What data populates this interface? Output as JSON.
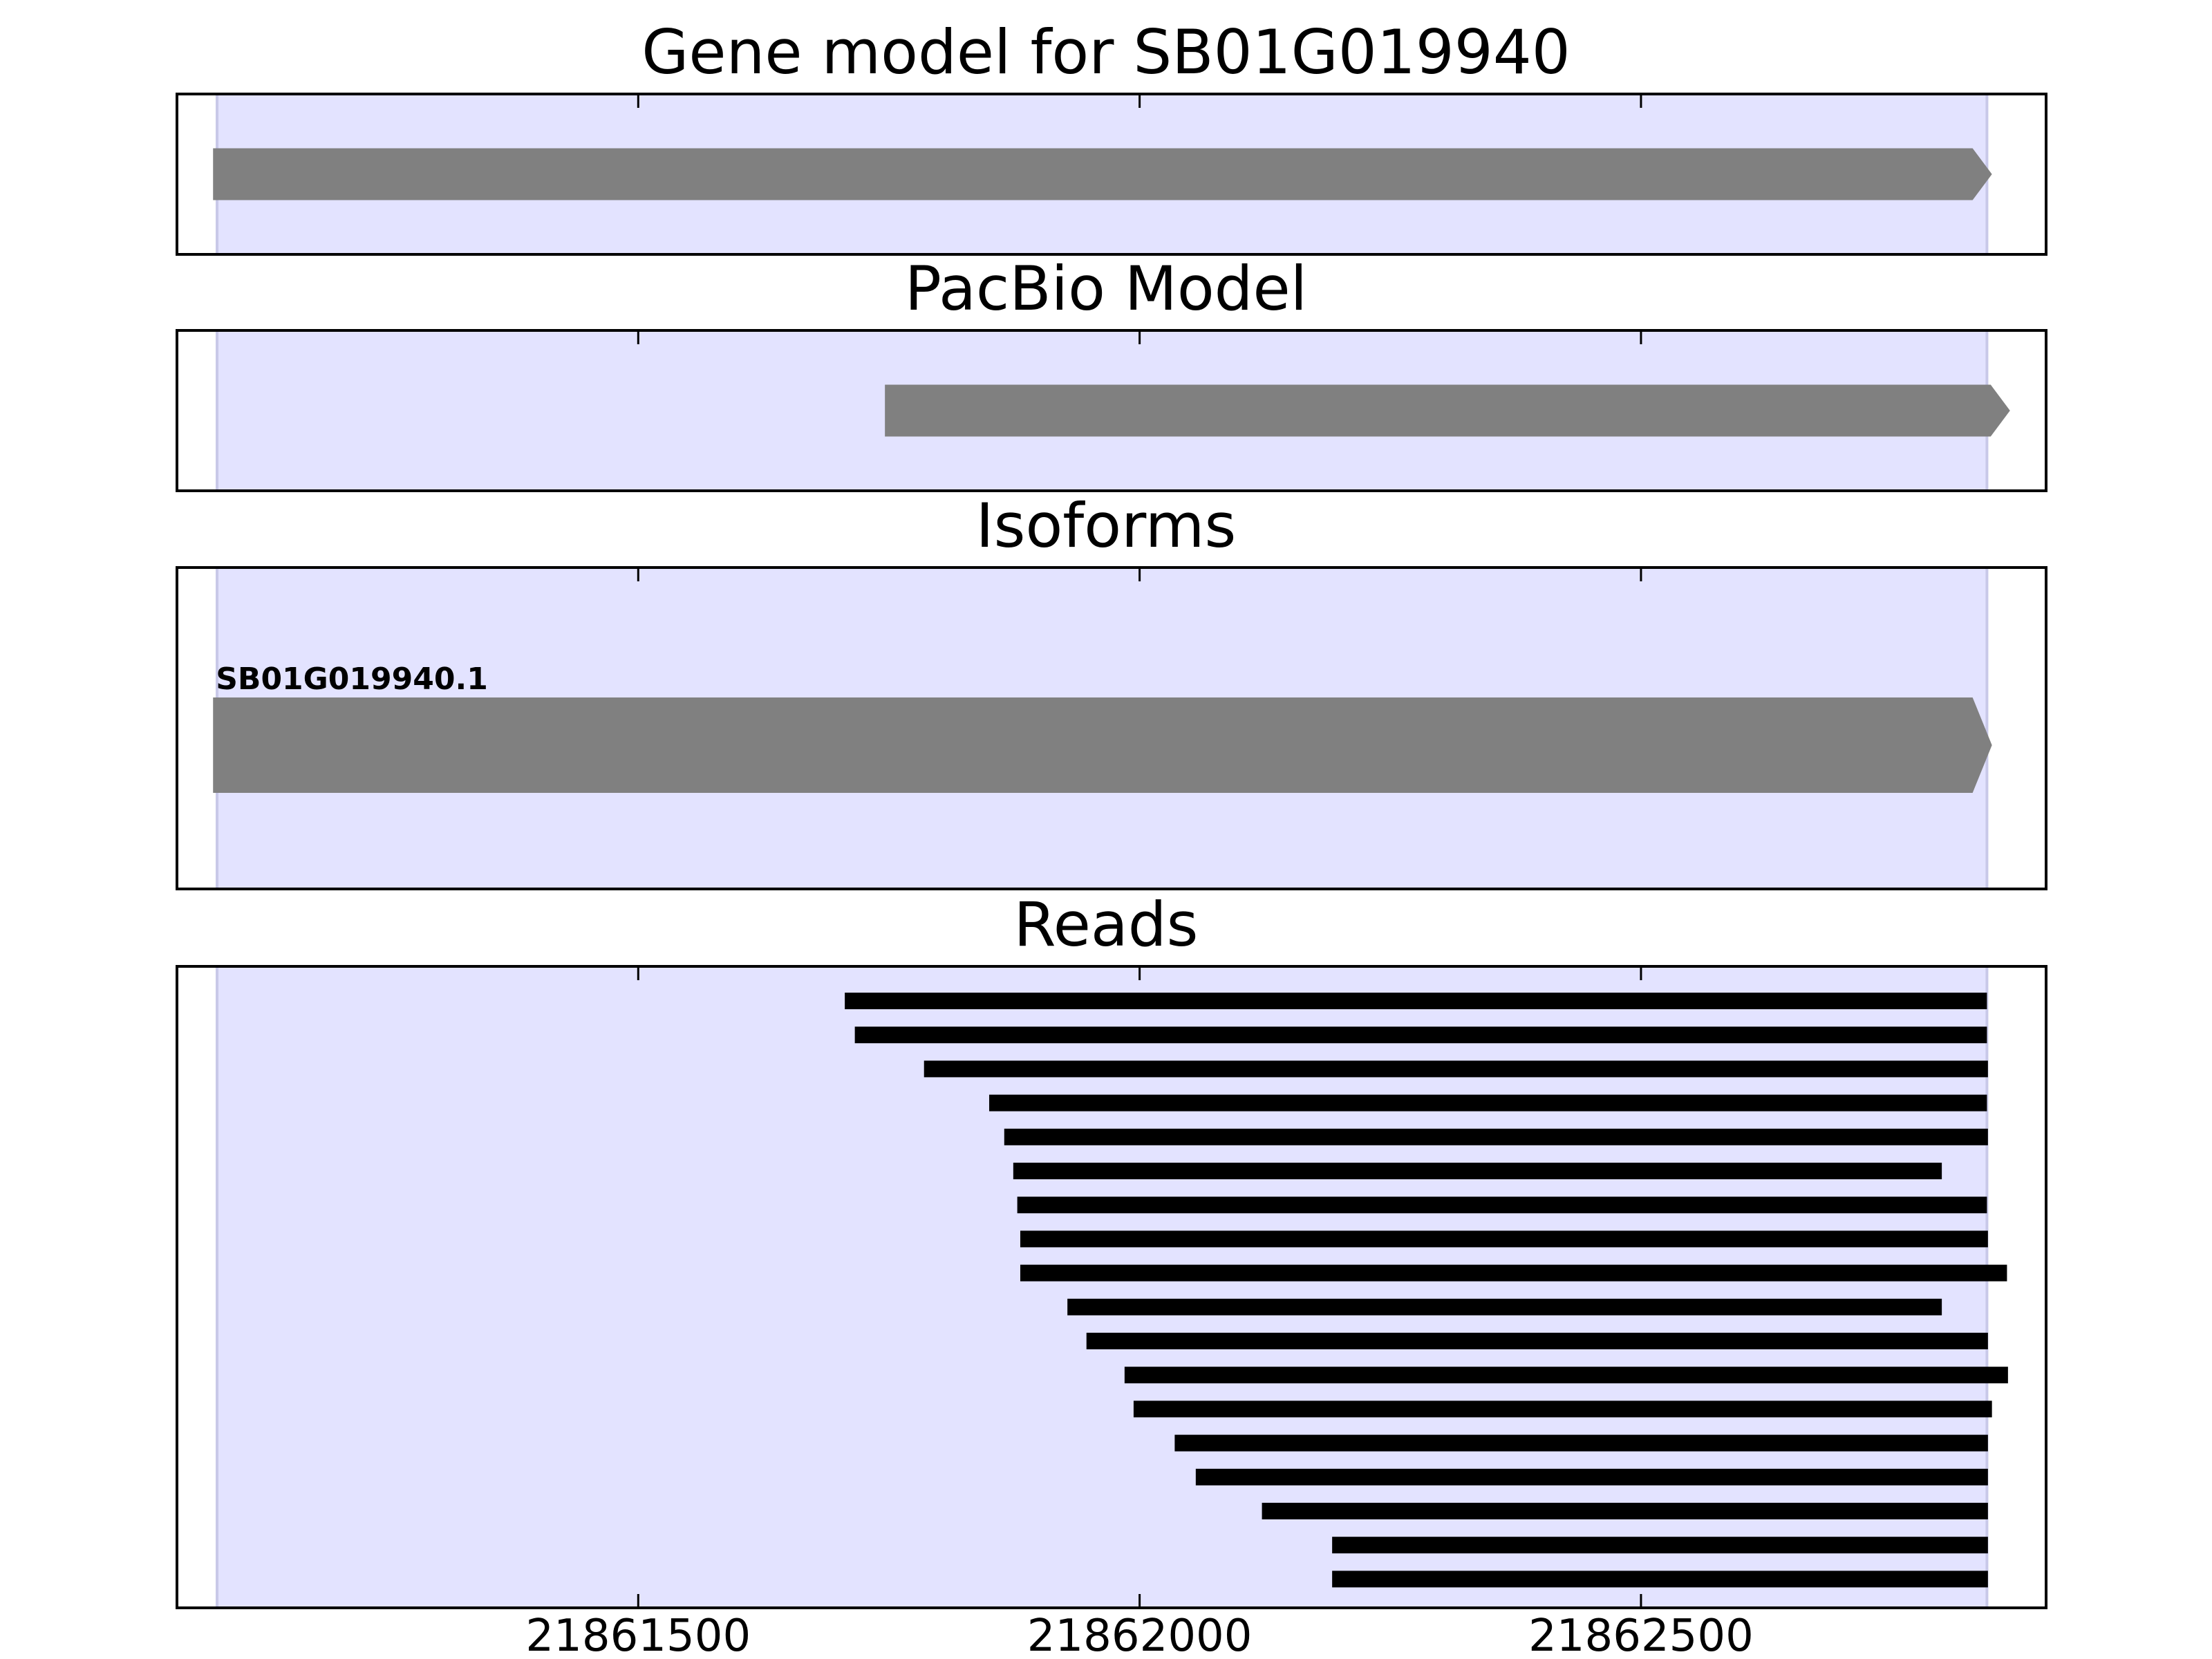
{
  "chart_data": {
    "type": "gene-track",
    "x_axis": {
      "ticks": [
        21861500,
        21862000,
        21862500
      ],
      "tick_labels": [
        "21861500",
        "21862000",
        "21862500"
      ],
      "xlim": [
        21861040,
        21862904
      ]
    },
    "gene_region": {
      "start": 21861080,
      "end": 21862845
    },
    "colors": {
      "gene_region": "#e3e3ff",
      "feature": "#808080",
      "read": "#000000",
      "frame": "#000000"
    },
    "panels": [
      {
        "title": "Gene model for SB01G019940",
        "features": [
          {
            "start": 21861076,
            "end": 21862850,
            "strand": "+"
          }
        ]
      },
      {
        "title": "PacBio Model",
        "features": [
          {
            "start": 21861746,
            "end": 21862868,
            "strand": "+"
          }
        ]
      },
      {
        "title": "Isoforms",
        "features": [
          {
            "name": "SB01G019940.1",
            "start": 21861076,
            "end": 21862850,
            "strand": "+"
          }
        ]
      },
      {
        "title": "Reads",
        "reads": [
          {
            "start": 21861706,
            "end": 21862845
          },
          {
            "start": 21861716,
            "end": 21862845
          },
          {
            "start": 21861785,
            "end": 21862846
          },
          {
            "start": 21861850,
            "end": 21862845
          },
          {
            "start": 21861865,
            "end": 21862846
          },
          {
            "start": 21861874,
            "end": 21862800
          },
          {
            "start": 21861878,
            "end": 21862845
          },
          {
            "start": 21861881,
            "end": 21862846
          },
          {
            "start": 21861881,
            "end": 21862865
          },
          {
            "start": 21861928,
            "end": 21862800
          },
          {
            "start": 21861947,
            "end": 21862846
          },
          {
            "start": 21861985,
            "end": 21862866
          },
          {
            "start": 21861994,
            "end": 21862850
          },
          {
            "start": 21862035,
            "end": 21862846
          },
          {
            "start": 21862056,
            "end": 21862846
          },
          {
            "start": 21862122,
            "end": 21862846
          },
          {
            "start": 21862192,
            "end": 21862846
          },
          {
            "start": 21862192,
            "end": 21862846
          }
        ]
      }
    ]
  }
}
